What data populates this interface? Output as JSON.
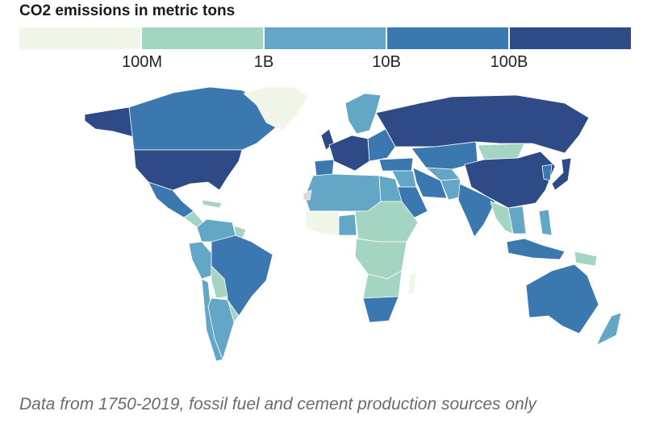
{
  "title": "CO2 emissions in metric tons",
  "legend": {
    "colors": [
      "#f0f6e8",
      "#a4d4c2",
      "#63a6c6",
      "#3b78b0",
      "#2e4b87"
    ],
    "ticks": [
      "100M",
      "1B",
      "10B",
      "100B"
    ]
  },
  "no_data_color": "#d9d9d9",
  "regions": {
    "alaska": 4,
    "canada": 3,
    "usa": 4,
    "greenland": 0,
    "mexico": 3,
    "central-america": 1,
    "caribbean": 1,
    "colombia-venezuela": 2,
    "guianas": 1,
    "peru": 2,
    "brazil": 3,
    "bolivia": 1,
    "argentina": 2,
    "chile": 2,
    "paraguay-uruguay": 1,
    "scandinavia": 2,
    "uk": 4,
    "western-europe": 4,
    "eastern-europe": 3,
    "iberia": 3,
    "russia": 4,
    "kazakhstan": 3,
    "central-asia": 2,
    "mongolia": 1,
    "china": 4,
    "korea": 3,
    "japan": 4,
    "india": 3,
    "pakistan": 2,
    "turkey": 3,
    "iran": 3,
    "saudi-arabia": 3,
    "iraq-syria": 2,
    "north-africa": 2,
    "egypt": 2,
    "west-africa": 0,
    "nigeria": 2,
    "sahel-east-africa": 1,
    "central-africa": 1,
    "southern-africa": 1,
    "south-africa": 3,
    "madagascar": 0,
    "indochina": 1,
    "thailand-vietnam": 2,
    "indonesia": 3,
    "philippines": 2,
    "papua": 1,
    "australia": 3,
    "new-zealand": 2
  },
  "caption": "Data from 1750-2019, fossil fuel and cement production sources only"
}
